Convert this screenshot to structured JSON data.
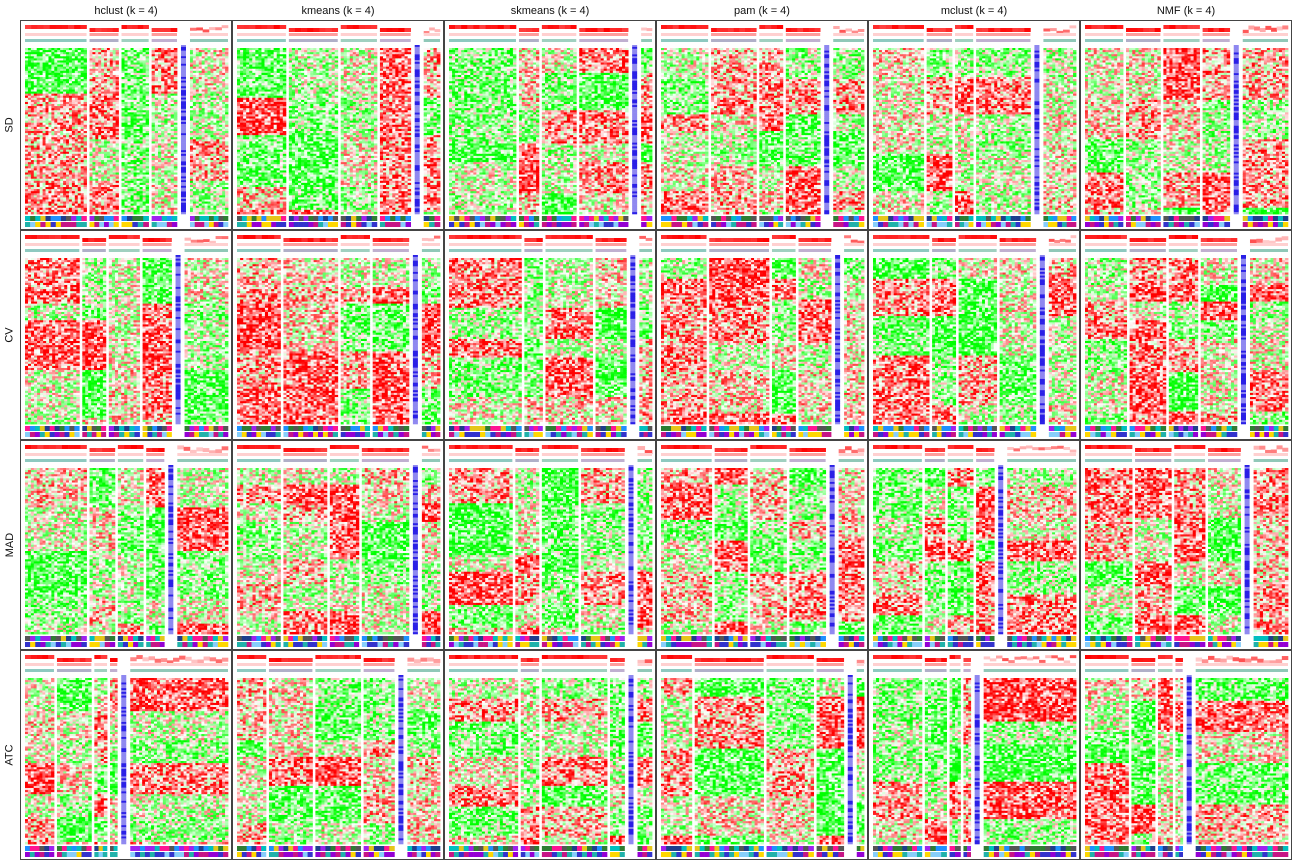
{
  "chart_data": {
    "type": "heatmap",
    "title": "",
    "columns": [
      "hclust (k = 4)",
      "kmeans (k = 4)",
      "skmeans (k = 4)",
      "pam (k = 4)",
      "mclust (k = 4)",
      "NMF (k = 4)"
    ],
    "rows": [
      "SD",
      "CV",
      "MAD",
      "ATC"
    ],
    "grid": true,
    "colors": {
      "high": "#ff0000",
      "mid": "#ffffff",
      "low": "#00ff00",
      "silhouette": "#2a1fe6",
      "border": "#444444"
    },
    "panels": [
      {
        "row": "SD",
        "col": "hclust (k = 4)",
        "group_sizes": [
          0.34,
          0.16,
          0.15,
          0.14,
          0.21
        ]
      },
      {
        "row": "SD",
        "col": "kmeans (k = 4)",
        "group_sizes": [
          0.27,
          0.27,
          0.2,
          0.17,
          0.09
        ]
      },
      {
        "row": "SD",
        "col": "skmeans (k = 4)",
        "group_sizes": [
          0.37,
          0.11,
          0.19,
          0.27,
          0.06
        ]
      },
      {
        "row": "SD",
        "col": "pam (k = 4)",
        "group_sizes": [
          0.26,
          0.25,
          0.13,
          0.19,
          0.17
        ]
      },
      {
        "row": "SD",
        "col": "mclust (k = 4)",
        "group_sizes": [
          0.28,
          0.14,
          0.1,
          0.3,
          0.18
        ]
      },
      {
        "row": "SD",
        "col": "NMF (k = 4)",
        "group_sizes": [
          0.21,
          0.19,
          0.2,
          0.15,
          0.25
        ]
      },
      {
        "row": "CV",
        "col": "hclust (k = 4)",
        "group_sizes": [
          0.3,
          0.13,
          0.17,
          0.16,
          0.24
        ]
      },
      {
        "row": "CV",
        "col": "kmeans (k = 4)",
        "group_sizes": [
          0.24,
          0.3,
          0.16,
          0.2,
          0.1
        ]
      },
      {
        "row": "CV",
        "col": "skmeans (k = 4)",
        "group_sizes": [
          0.4,
          0.1,
          0.26,
          0.17,
          0.07
        ]
      },
      {
        "row": "CV",
        "col": "pam (k = 4)",
        "group_sizes": [
          0.25,
          0.33,
          0.13,
          0.18,
          0.11
        ]
      },
      {
        "row": "CV",
        "col": "mclust (k = 4)",
        "group_sizes": [
          0.31,
          0.13,
          0.21,
          0.2,
          0.15
        ]
      },
      {
        "row": "CV",
        "col": "NMF (k = 4)",
        "group_sizes": [
          0.23,
          0.2,
          0.16,
          0.2,
          0.21
        ]
      },
      {
        "row": "MAD",
        "col": "hclust (k = 4)",
        "group_sizes": [
          0.34,
          0.14,
          0.14,
          0.1,
          0.28
        ]
      },
      {
        "row": "MAD",
        "col": "kmeans (k = 4)",
        "group_sizes": [
          0.24,
          0.24,
          0.16,
          0.26,
          0.1
        ]
      },
      {
        "row": "MAD",
        "col": "skmeans (k = 4)",
        "group_sizes": [
          0.35,
          0.13,
          0.2,
          0.24,
          0.08
        ]
      },
      {
        "row": "MAD",
        "col": "pam (k = 4)",
        "group_sizes": [
          0.28,
          0.18,
          0.2,
          0.2,
          0.14
        ]
      },
      {
        "row": "MAD",
        "col": "mclust (k = 4)",
        "group_sizes": [
          0.27,
          0.11,
          0.14,
          0.1,
          0.38
        ]
      },
      {
        "row": "MAD",
        "col": "NMF (k = 4)",
        "group_sizes": [
          0.26,
          0.2,
          0.17,
          0.18,
          0.19
        ]
      },
      {
        "row": "ATC",
        "col": "hclust (k = 4)",
        "group_sizes": [
          0.16,
          0.19,
          0.07,
          0.04,
          0.54
        ]
      },
      {
        "row": "ATC",
        "col": "kmeans (k = 4)",
        "group_sizes": [
          0.16,
          0.24,
          0.25,
          0.17,
          0.18
        ]
      },
      {
        "row": "ATC",
        "col": "skmeans (k = 4)",
        "group_sizes": [
          0.38,
          0.1,
          0.36,
          0.08,
          0.08
        ]
      },
      {
        "row": "ATC",
        "col": "pam (k = 4)",
        "group_sizes": [
          0.17,
          0.38,
          0.26,
          0.15,
          0.04
        ]
      },
      {
        "row": "ATC",
        "col": "mclust (k = 4)",
        "group_sizes": [
          0.27,
          0.12,
          0.06,
          0.04,
          0.51
        ]
      },
      {
        "row": "ATC",
        "col": "NMF (k = 4)",
        "group_sizes": [
          0.24,
          0.13,
          0.08,
          0.04,
          0.51
        ]
      }
    ]
  }
}
